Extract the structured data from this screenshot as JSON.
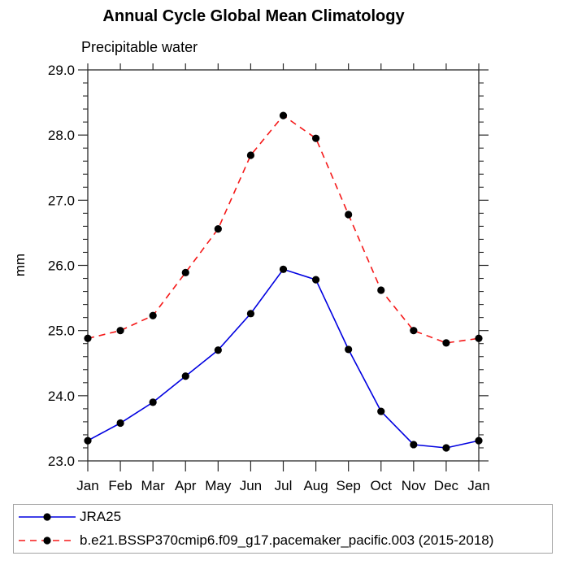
{
  "chart_data": {
    "type": "line",
    "title": "Annual Cycle Global Mean Climatology",
    "subtitle": "Precipitable water",
    "ylabel": "mm",
    "xlabel": "",
    "categories": [
      "Jan",
      "Feb",
      "Mar",
      "Apr",
      "May",
      "Jun",
      "Jul",
      "Aug",
      "Sep",
      "Oct",
      "Nov",
      "Dec",
      "Jan"
    ],
    "ylim": [
      23.0,
      29.0
    ],
    "ytick_major": 1.0,
    "ytick_minor": 0.2,
    "ytick_format_decimals": 1,
    "grid": false,
    "legend_position": "bottom-box",
    "marker": {
      "shape": "circle",
      "color": "#000000"
    },
    "axis_color": "#2a2a2a",
    "series": [
      {
        "name": "JRA25",
        "color": "#0000e0",
        "style": "solid",
        "values": [
          23.31,
          23.58,
          23.9,
          24.3,
          24.7,
          25.26,
          25.94,
          25.78,
          24.71,
          23.76,
          23.25,
          23.2,
          23.31
        ]
      },
      {
        "name": "b.e21.BSSP370cmip6.f09_g17.pacemaker_pacific.003 (2015-2018)",
        "color": "#f51818",
        "style": "dashed",
        "values": [
          24.88,
          25.0,
          25.23,
          25.89,
          26.56,
          27.69,
          28.3,
          27.95,
          26.78,
          25.62,
          25.0,
          24.81,
          24.88
        ]
      }
    ]
  }
}
